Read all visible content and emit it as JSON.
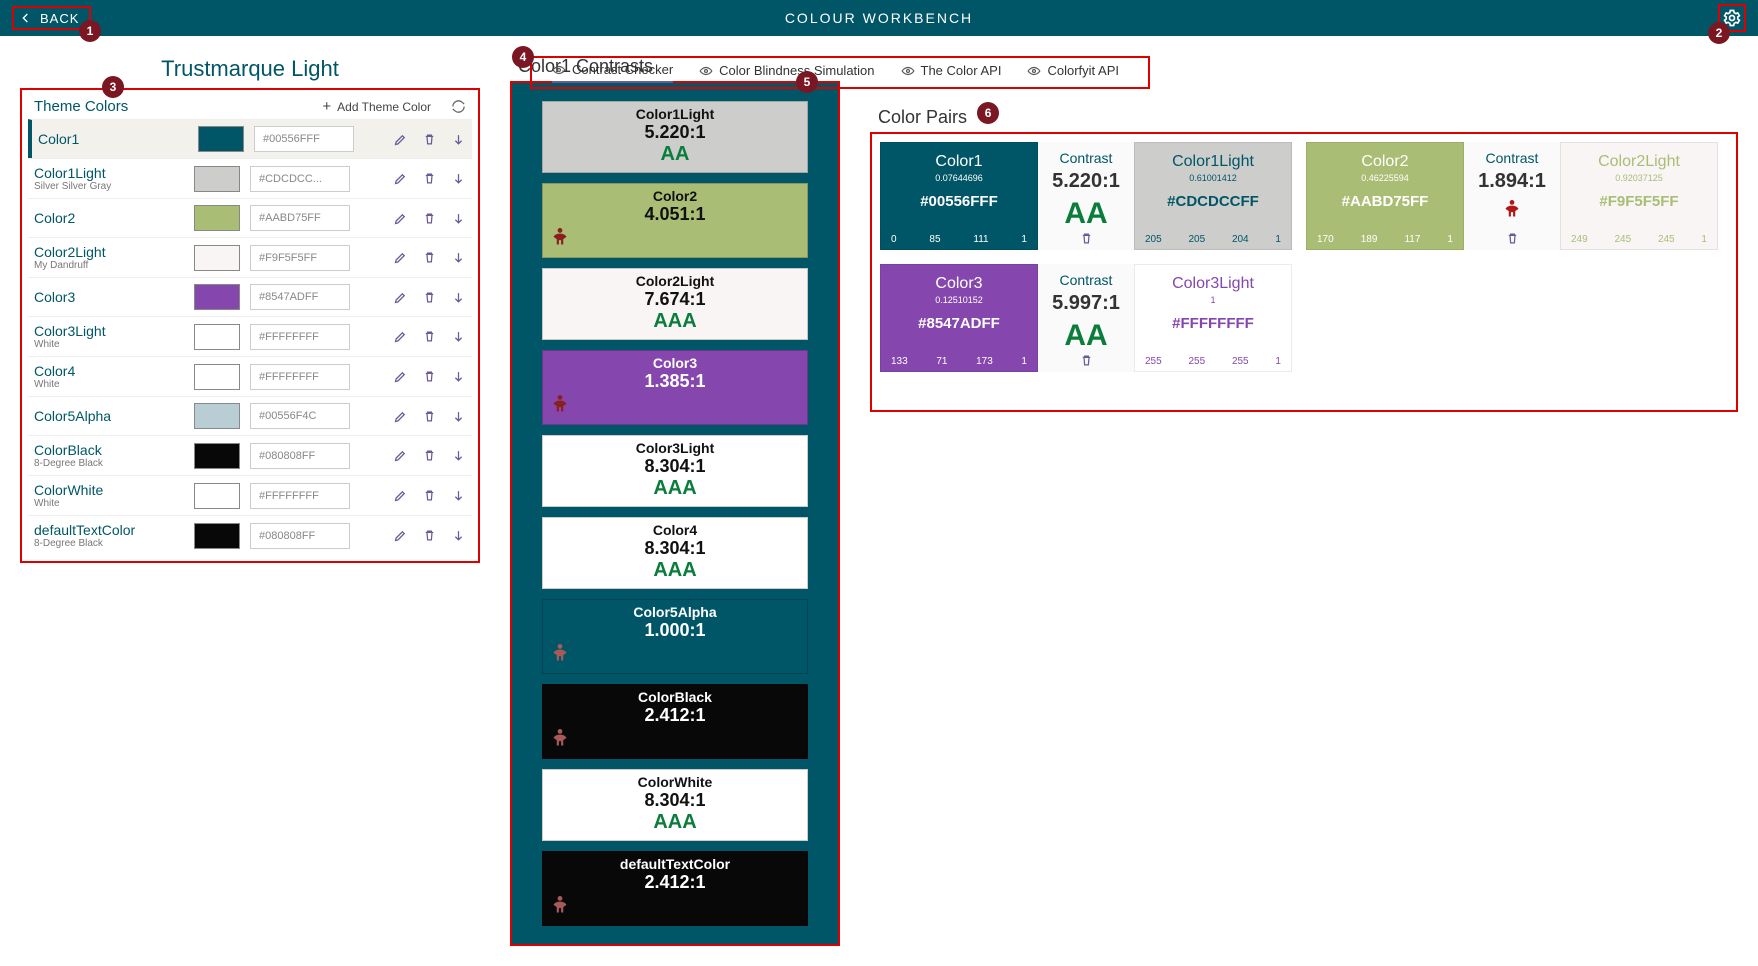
{
  "header": {
    "back_label": "BACK",
    "title": "COLOUR WORKBENCH"
  },
  "annotations": [
    "1",
    "2",
    "3",
    "4",
    "5",
    "6"
  ],
  "theme": {
    "title": "Trustmarque Light",
    "panel_title": "Theme Colors",
    "add_label": "Add Theme Color",
    "colors": [
      {
        "name": "Color1",
        "sub": "",
        "hex": "#00556FFF",
        "swatch": "#005667",
        "selected": true
      },
      {
        "name": "Color1Light",
        "sub": "Silver Silver Gray",
        "hex": "#CDCDCC...",
        "swatch": "#cdcdcc",
        "selected": false
      },
      {
        "name": "Color2",
        "sub": "",
        "hex": "#AABD75FF",
        "swatch": "#aabd75",
        "selected": false
      },
      {
        "name": "Color2Light",
        "sub": "My Dandruff",
        "hex": "#F9F5F5FF",
        "swatch": "#f9f5f5",
        "selected": false
      },
      {
        "name": "Color3",
        "sub": "",
        "hex": "#8547ADFF",
        "swatch": "#8547ad",
        "selected": false
      },
      {
        "name": "Color3Light",
        "sub": "White",
        "hex": "#FFFFFFFF",
        "swatch": "#ffffff",
        "selected": false
      },
      {
        "name": "Color4",
        "sub": "White",
        "hex": "#FFFFFFFF",
        "swatch": "#ffffff",
        "selected": false
      },
      {
        "name": "Color5Alpha",
        "sub": "",
        "hex": "#00556F4C",
        "swatch": "#b9cdd5",
        "selected": false
      },
      {
        "name": "ColorBlack",
        "sub": "8-Degree Black",
        "hex": "#080808FF",
        "swatch": "#080808",
        "selected": false
      },
      {
        "name": "ColorWhite",
        "sub": "White",
        "hex": "#FFFFFFFF",
        "swatch": "#ffffff",
        "selected": false
      },
      {
        "name": "defaultTextColor",
        "sub": "8-Degree Black",
        "hex": "#080808FF",
        "swatch": "#080808",
        "selected": false
      }
    ]
  },
  "tabs": [
    {
      "label": "Contrast Checker",
      "active": true
    },
    {
      "label": "Color Blindness Simulation",
      "active": false
    },
    {
      "label": "The Color API",
      "active": false
    },
    {
      "label": "Colorfyit API",
      "active": false
    }
  ],
  "contrasts": {
    "title": "Color1 Contrasts",
    "bg": "#005667",
    "cards": [
      {
        "name": "Color1Light",
        "ratio": "5.220:1",
        "rating": "AA",
        "bg": "#cdcdcc",
        "fg": "#111",
        "rating_color": "#0a7d3a"
      },
      {
        "name": "Color2",
        "ratio": "4.051:1",
        "rating": "✗",
        "bg": "#aabd75",
        "fg": "#111",
        "rating_color": "#8a1f1f"
      },
      {
        "name": "Color2Light",
        "ratio": "7.674:1",
        "rating": "AAA",
        "bg": "#f9f5f5",
        "fg": "#111",
        "rating_color": "#0a7d3a"
      },
      {
        "name": "Color3",
        "ratio": "1.385:1",
        "rating": "✗",
        "bg": "#8547ad",
        "fg": "#fff",
        "rating_color": "#8a1f1f"
      },
      {
        "name": "Color3Light",
        "ratio": "8.304:1",
        "rating": "AAA",
        "bg": "#ffffff",
        "fg": "#111",
        "rating_color": "#0a7d3a"
      },
      {
        "name": "Color4",
        "ratio": "8.304:1",
        "rating": "AAA",
        "bg": "#ffffff",
        "fg": "#111",
        "rating_color": "#0a7d3a"
      },
      {
        "name": "Color5Alpha",
        "ratio": "1.000:1",
        "rating": "✗",
        "bg": "#005667",
        "fg": "#fff",
        "rating_color": "#a85a5a"
      },
      {
        "name": "ColorBlack",
        "ratio": "2.412:1",
        "rating": "✗",
        "bg": "#080808",
        "fg": "#fff",
        "rating_color": "#a85a5a"
      },
      {
        "name": "ColorWhite",
        "ratio": "8.304:1",
        "rating": "AAA",
        "bg": "#ffffff",
        "fg": "#111",
        "rating_color": "#0a7d3a"
      },
      {
        "name": "defaultTextColor",
        "ratio": "2.412:1",
        "rating": "✗",
        "bg": "#080808",
        "fg": "#fff",
        "rating_color": "#a85a5a"
      }
    ]
  },
  "pairs": {
    "title": "Color Pairs",
    "contrast_label": "Contrast",
    "items": [
      {
        "left": {
          "name": "Color1",
          "lum": "0.07644696",
          "hex": "#00556FFF",
          "rgba": [
            "0",
            "85",
            "111",
            "1"
          ],
          "bg": "#005667",
          "fg": "#ffffff"
        },
        "ratio": "5.220:1",
        "rating": "AA",
        "rating_color": "#0a7d3a",
        "right": {
          "name": "Color1Light",
          "lum": "0.61001412",
          "hex": "#CDCDCCFF",
          "rgba": [
            "205",
            "205",
            "204",
            "1"
          ],
          "bg": "#cdcdcc",
          "fg": "#005667"
        }
      },
      {
        "left": {
          "name": "Color2",
          "lum": "0.46225594",
          "hex": "#AABD75FF",
          "rgba": [
            "170",
            "189",
            "117",
            "1"
          ],
          "bg": "#aabd75",
          "fg": "#ffffff"
        },
        "ratio": "1.894:1",
        "rating": "person",
        "rating_color": "#b01919",
        "right": {
          "name": "Color2Light",
          "lum": "0.92037125",
          "hex": "#F9F5F5FF",
          "rgba": [
            "249",
            "245",
            "245",
            "1"
          ],
          "bg": "#f9f5f5",
          "fg": "#aabd75"
        }
      },
      {
        "left": {
          "name": "Color3",
          "lum": "0.12510152",
          "hex": "#8547ADFF",
          "rgba": [
            "133",
            "71",
            "173",
            "1"
          ],
          "bg": "#8547ad",
          "fg": "#ffffff"
        },
        "ratio": "5.997:1",
        "rating": "AA",
        "rating_color": "#0a7d3a",
        "right": {
          "name": "Color3Light",
          "lum": "1",
          "hex": "#FFFFFFFF",
          "rgba": [
            "255",
            "255",
            "255",
            "1"
          ],
          "bg": "#ffffff",
          "fg": "#8547ad"
        }
      }
    ]
  }
}
